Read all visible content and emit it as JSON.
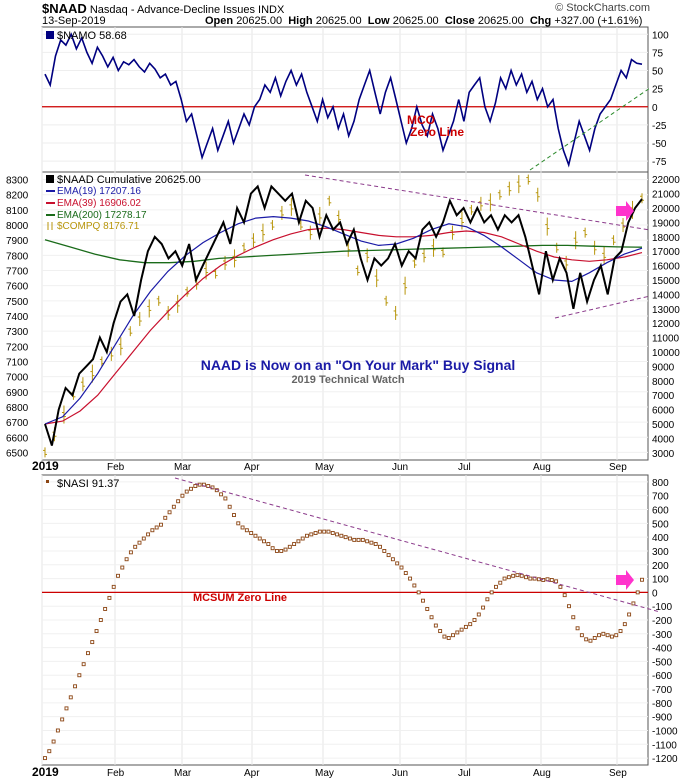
{
  "header": {
    "symbol": "$NAAD",
    "name": "Nasdaq - Advance-Decline Issues",
    "exchange": "INDX",
    "date": "13-Sep-2019",
    "open_label": "Open",
    "open": "20625.00",
    "high_label": "High",
    "high": "20625.00",
    "low_label": "Low",
    "low": "20625.00",
    "close_label": "Close",
    "close": "20625.00",
    "chg_label": "Chg",
    "chg": "+327.00 (+1.61%)",
    "watermark": "© StockCharts.com"
  },
  "colors": {
    "navy": "#000080",
    "red": "#cc0000",
    "black": "#000000",
    "blue": "#1a1aa6",
    "crimson": "#c8102e",
    "green": "#1a6b1a",
    "olive": "#b8960c",
    "brown": "#8b4513",
    "purple": "#8b3a8b",
    "dash_green": "#2e8b2e",
    "magenta": "#ff33cc",
    "frame": "#555555"
  },
  "chart_data": [
    {
      "type": "line",
      "panel": "top",
      "legend": "$NAMO 58.68",
      "ylim": [
        -90,
        110
      ],
      "yticks": [
        100,
        75,
        50,
        25,
        0,
        -25,
        -50,
        -75
      ],
      "zero_line_label": [
        "MCO",
        "Zero Line"
      ],
      "series": [
        {
          "name": "$NAMO",
          "values": [
            45,
            30,
            70,
            92,
            85,
            100,
            80,
            95,
            75,
            60,
            82,
            70,
            55,
            68,
            50,
            62,
            58,
            65,
            55,
            48,
            60,
            52,
            40,
            45,
            30,
            35,
            10,
            -20,
            -10,
            -40,
            -70,
            -50,
            -30,
            -60,
            -40,
            -20,
            -50,
            -30,
            -10,
            -25,
            0,
            10,
            30,
            20,
            40,
            15,
            35,
            50,
            30,
            45,
            20,
            0,
            -20,
            10,
            -15,
            0,
            -30,
            -10,
            -40,
            -20,
            10,
            30,
            50,
            20,
            -10,
            20,
            40,
            10,
            -20,
            -50,
            -30,
            0,
            -25,
            -40,
            -10,
            -30,
            -60,
            -40,
            -20,
            10,
            -20,
            20,
            30,
            40,
            0,
            -20,
            5,
            40,
            25,
            50,
            30,
            45,
            20,
            35,
            10,
            25,
            0,
            10,
            -30,
            -60,
            -80,
            -50,
            -20,
            -40,
            -60,
            -30,
            -10,
            0,
            10,
            30,
            50,
            40,
            65,
            60,
            58.68
          ]
        }
      ]
    },
    {
      "type": "line",
      "panel": "middle",
      "title": "NAAD is Now on an \"On Your Mark\" Buy Signal",
      "subtitle": "2019 Technical Watch",
      "left_ylim": [
        6450,
        8350
      ],
      "left_yticks": [
        8300,
        8200,
        8100,
        8000,
        7900,
        7800,
        7700,
        7600,
        7500,
        7400,
        7300,
        7200,
        7100,
        7000,
        6900,
        6800,
        6700,
        6600,
        6500
      ],
      "right_ylim": [
        2500,
        22500
      ],
      "right_yticks": [
        22000,
        21000,
        20000,
        19000,
        18000,
        17000,
        16000,
        15000,
        14000,
        13000,
        12000,
        11000,
        10000,
        9000,
        8000,
        7000,
        6000,
        5000,
        4000,
        3000
      ],
      "legend": [
        "$NAAD Cumulative 20625.00",
        "EMA(19) 17207.16",
        "EMA(39) 16906.02",
        "EMA(200) 17278.17",
        "$COMPQ 8176.71"
      ],
      "series": [
        {
          "name": "$NAAD Cumulative",
          "axis": "right",
          "values": [
            5000,
            3500,
            6000,
            7500,
            7000,
            8500,
            9000,
            9500,
            11000,
            10000,
            12000,
            13500,
            14000,
            12500,
            15000,
            17000,
            18000,
            17500,
            16500,
            17000,
            16000,
            17500,
            15000,
            16000,
            17000,
            18000,
            19000,
            17500,
            20000,
            19000,
            21000,
            21500,
            20000,
            21500,
            21000,
            20500,
            21000,
            19000,
            20500,
            20000,
            18000,
            19500,
            18500,
            19000,
            17500,
            18500,
            16500,
            15000,
            16500,
            16000,
            16500,
            17500,
            16000,
            17000,
            16500,
            18500,
            19000,
            18000,
            19000,
            20500,
            19500,
            20000,
            19000,
            20000,
            19000,
            19500,
            18500,
            19500,
            19000,
            19500,
            18000,
            16000,
            14000,
            17000,
            15000,
            16500,
            15500,
            13000,
            15500,
            13500,
            15000,
            16000,
            14000,
            16500,
            17000,
            19000,
            20000,
            20625
          ]
        },
        {
          "name": "EMA(19)",
          "axis": "right",
          "values": [
            5000,
            5500,
            6800,
            8500,
            10500,
            12500,
            14200,
            15600,
            16700,
            17600,
            18300,
            18900,
            19300,
            19400,
            19300,
            19100,
            18700,
            18200,
            17700,
            17400,
            17500,
            17900,
            18500,
            18900,
            18700,
            18100,
            17300,
            16400,
            15500,
            15000,
            14900,
            15500,
            16200,
            16800,
            17207.16
          ]
        },
        {
          "name": "EMA(39)",
          "axis": "right",
          "values": [
            5000,
            5200,
            5900,
            7000,
            8500,
            10000,
            11500,
            12800,
            14000,
            15100,
            16000,
            16700,
            17300,
            17800,
            18200,
            18500,
            18600,
            18500,
            18300,
            18100,
            18000,
            18000,
            18100,
            18300,
            18400,
            18300,
            18000,
            17500,
            17000,
            16600,
            16400,
            16300,
            16400,
            16600,
            16906.02
          ]
        },
        {
          "name": "EMA(200)",
          "axis": "right",
          "values": [
            17800,
            17300,
            16800,
            16400,
            16200,
            16200,
            16300,
            16500,
            16600,
            16700,
            16800,
            16900,
            17000,
            17050,
            17100,
            17150,
            17200,
            17250,
            17300,
            17350,
            17400,
            17400,
            17350,
            17300,
            17278.17
          ]
        },
        {
          "name": "$COMPQ",
          "axis": "left",
          "values": [
            6500,
            6620,
            6750,
            6880,
            6950,
            7020,
            7100,
            7150,
            7200,
            7300,
            7380,
            7450,
            7500,
            7420,
            7480,
            7560,
            7620,
            7700,
            7680,
            7750,
            7780,
            7850,
            7900,
            7950,
            8000,
            8080,
            8120,
            8000,
            7950,
            8060,
            8160,
            8050,
            7850,
            7700,
            7800,
            7650,
            7500,
            7420,
            7600,
            7750,
            7800,
            7850,
            7820,
            7950,
            8030,
            8100,
            8140,
            8150,
            8200,
            8240,
            8270,
            8300,
            8200,
            7990,
            7850,
            7750,
            7900,
            7950,
            7850,
            7800,
            7900,
            8000,
            8100,
            8176.71
          ]
        }
      ]
    },
    {
      "type": "scatter",
      "panel": "bottom",
      "legend": "$NASI 91.37",
      "ylim": [
        -1250,
        850
      ],
      "yticks": [
        800,
        700,
        600,
        500,
        400,
        300,
        200,
        100,
        0,
        -100,
        -200,
        -300,
        -400,
        -500,
        -600,
        -700,
        -800,
        -900,
        -1000,
        -1100,
        -1200
      ],
      "zero_line_label": "MCSUM Zero Line",
      "series": [
        {
          "name": "$NASI",
          "values": [
            -1200,
            -1150,
            -1080,
            -1000,
            -920,
            -840,
            -760,
            -680,
            -600,
            -520,
            -440,
            -360,
            -280,
            -200,
            -120,
            -40,
            40,
            120,
            180,
            240,
            290,
            330,
            360,
            390,
            420,
            450,
            470,
            490,
            540,
            580,
            620,
            660,
            700,
            730,
            750,
            770,
            780,
            780,
            770,
            760,
            740,
            710,
            680,
            620,
            560,
            500,
            470,
            450,
            430,
            410,
            390,
            370,
            350,
            320,
            300,
            300,
            310,
            330,
            350,
            370,
            390,
            410,
            420,
            430,
            440,
            440,
            440,
            430,
            420,
            410,
            400,
            390,
            380,
            380,
            380,
            370,
            360,
            350,
            330,
            300,
            270,
            240,
            210,
            180,
            140,
            100,
            50,
            0,
            -60,
            -120,
            -180,
            -240,
            -280,
            -320,
            -330,
            -310,
            -290,
            -270,
            -250,
            -230,
            -200,
            -160,
            -110,
            -50,
            0,
            40,
            70,
            100,
            110,
            120,
            125,
            120,
            110,
            100,
            100,
            95,
            90,
            95,
            90,
            80,
            40,
            -20,
            -100,
            -180,
            -260,
            -310,
            -340,
            -350,
            -330,
            -310,
            -300,
            -310,
            -320,
            -310,
            -280,
            -230,
            -160,
            -80,
            0,
            91.37
          ]
        }
      ]
    }
  ],
  "months": [
    "2019",
    "Feb",
    "Mar",
    "Apr",
    "May",
    "Jun",
    "Jul",
    "Aug",
    "Sep"
  ]
}
